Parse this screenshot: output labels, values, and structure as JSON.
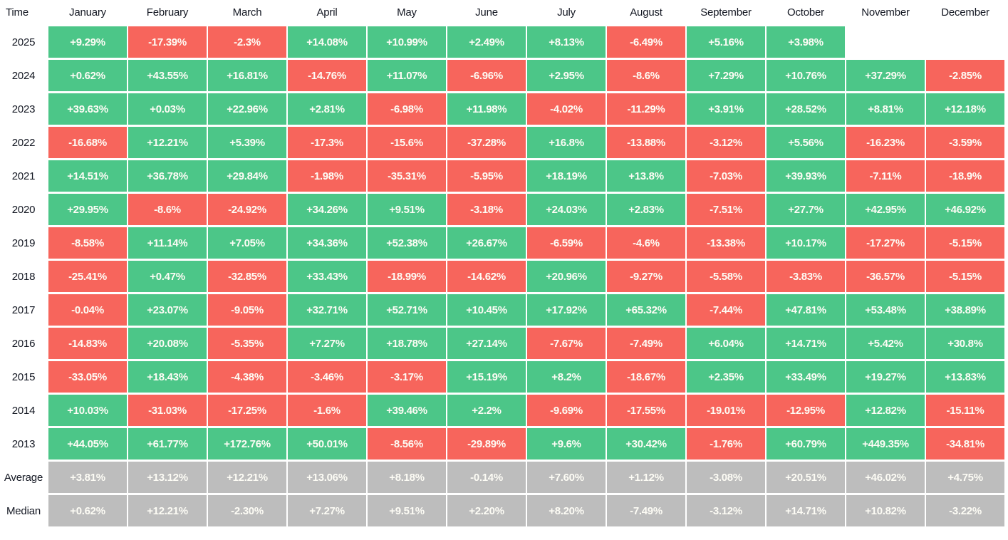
{
  "chart_data": {
    "type": "heatmap",
    "corner_label": "Time",
    "columns": [
      "January",
      "February",
      "March",
      "April",
      "May",
      "June",
      "July",
      "August",
      "September",
      "October",
      "November",
      "December"
    ],
    "rows": [
      {
        "label": "2025",
        "kind": "year",
        "values": [
          "+9.29%",
          "-17.39%",
          "-2.3%",
          "+14.08%",
          "+10.99%",
          "+2.49%",
          "+8.13%",
          "-6.49%",
          "+5.16%",
          "+3.98%",
          null,
          null
        ]
      },
      {
        "label": "2024",
        "kind": "year",
        "values": [
          "+0.62%",
          "+43.55%",
          "+16.81%",
          "-14.76%",
          "+11.07%",
          "-6.96%",
          "+2.95%",
          "-8.6%",
          "+7.29%",
          "+10.76%",
          "+37.29%",
          "-2.85%"
        ]
      },
      {
        "label": "2023",
        "kind": "year",
        "values": [
          "+39.63%",
          "+0.03%",
          "+22.96%",
          "+2.81%",
          "-6.98%",
          "+11.98%",
          "-4.02%",
          "-11.29%",
          "+3.91%",
          "+28.52%",
          "+8.81%",
          "+12.18%"
        ]
      },
      {
        "label": "2022",
        "kind": "year",
        "values": [
          "-16.68%",
          "+12.21%",
          "+5.39%",
          "-17.3%",
          "-15.6%",
          "-37.28%",
          "+16.8%",
          "-13.88%",
          "-3.12%",
          "+5.56%",
          "-16.23%",
          "-3.59%"
        ]
      },
      {
        "label": "2021",
        "kind": "year",
        "values": [
          "+14.51%",
          "+36.78%",
          "+29.84%",
          "-1.98%",
          "-35.31%",
          "-5.95%",
          "+18.19%",
          "+13.8%",
          "-7.03%",
          "+39.93%",
          "-7.11%",
          "-18.9%"
        ]
      },
      {
        "label": "2020",
        "kind": "year",
        "values": [
          "+29.95%",
          "-8.6%",
          "-24.92%",
          "+34.26%",
          "+9.51%",
          "-3.18%",
          "+24.03%",
          "+2.83%",
          "-7.51%",
          "+27.7%",
          "+42.95%",
          "+46.92%"
        ]
      },
      {
        "label": "2019",
        "kind": "year",
        "values": [
          "-8.58%",
          "+11.14%",
          "+7.05%",
          "+34.36%",
          "+52.38%",
          "+26.67%",
          "-6.59%",
          "-4.6%",
          "-13.38%",
          "+10.17%",
          "-17.27%",
          "-5.15%"
        ]
      },
      {
        "label": "2018",
        "kind": "year",
        "values": [
          "-25.41%",
          "+0.47%",
          "-32.85%",
          "+33.43%",
          "-18.99%",
          "-14.62%",
          "+20.96%",
          "-9.27%",
          "-5.58%",
          "-3.83%",
          "-36.57%",
          "-5.15%"
        ]
      },
      {
        "label": "2017",
        "kind": "year",
        "values": [
          "-0.04%",
          "+23.07%",
          "-9.05%",
          "+32.71%",
          "+52.71%",
          "+10.45%",
          "+17.92%",
          "+65.32%",
          "-7.44%",
          "+47.81%",
          "+53.48%",
          "+38.89%"
        ]
      },
      {
        "label": "2016",
        "kind": "year",
        "values": [
          "-14.83%",
          "+20.08%",
          "-5.35%",
          "+7.27%",
          "+18.78%",
          "+27.14%",
          "-7.67%",
          "-7.49%",
          "+6.04%",
          "+14.71%",
          "+5.42%",
          "+30.8%"
        ]
      },
      {
        "label": "2015",
        "kind": "year",
        "values": [
          "-33.05%",
          "+18.43%",
          "-4.38%",
          "-3.46%",
          "-3.17%",
          "+15.19%",
          "+8.2%",
          "-18.67%",
          "+2.35%",
          "+33.49%",
          "+19.27%",
          "+13.83%"
        ]
      },
      {
        "label": "2014",
        "kind": "year",
        "values": [
          "+10.03%",
          "-31.03%",
          "-17.25%",
          "-1.6%",
          "+39.46%",
          "+2.2%",
          "-9.69%",
          "-17.55%",
          "-19.01%",
          "-12.95%",
          "+12.82%",
          "-15.11%"
        ]
      },
      {
        "label": "2013",
        "kind": "year",
        "values": [
          "+44.05%",
          "+61.77%",
          "+172.76%",
          "+50.01%",
          "-8.56%",
          "-29.89%",
          "+9.6%",
          "+30.42%",
          "-1.76%",
          "+60.79%",
          "+449.35%",
          "-34.81%"
        ]
      },
      {
        "label": "Average",
        "kind": "summary",
        "values": [
          "+3.81%",
          "+13.12%",
          "+12.21%",
          "+13.06%",
          "+8.18%",
          "-0.14%",
          "+7.60%",
          "+1.12%",
          "-3.08%",
          "+20.51%",
          "+46.02%",
          "+4.75%"
        ]
      },
      {
        "label": "Median",
        "kind": "summary",
        "values": [
          "+0.62%",
          "+12.21%",
          "-2.30%",
          "+7.27%",
          "+9.51%",
          "+2.20%",
          "+8.20%",
          "-7.49%",
          "-3.12%",
          "+14.71%",
          "+10.82%",
          "-3.22%"
        ]
      }
    ],
    "color_rules": {
      "positive_cell": "#4cc688",
      "negative_cell": "#f7655c",
      "summary_row_cell": "#bdbdbd",
      "cell_text": "#fdfcf5",
      "label_text": "#131722",
      "background": "#ffffff"
    }
  }
}
